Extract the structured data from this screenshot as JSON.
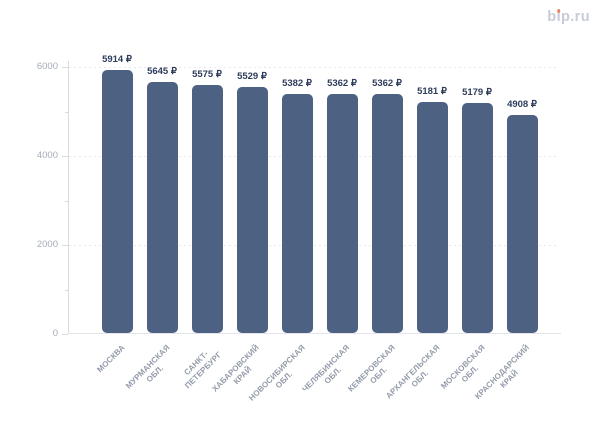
{
  "logo": {
    "text": "bip.ru",
    "color": "#c8ccd9",
    "dot_color": "#ef8266"
  },
  "chart_data": {
    "type": "bar",
    "title": "",
    "xlabel": "",
    "ylabel": "",
    "categories": [
      [
        "МОСКВА"
      ],
      [
        "МУРМАНСКАЯ",
        "ОБЛ."
      ],
      [
        "САНКТ-",
        "ПЕТЕРБУРГ"
      ],
      [
        "ХАБАРОВСКИЙ",
        "КРАЙ"
      ],
      [
        "НОВОСИБИРСКАЯ",
        "ОБЛ."
      ],
      [
        "ЧЕЛЯБИНСКАЯ",
        "ОБЛ."
      ],
      [
        "КЕМЕРОВСКАЯ",
        "ОБЛ."
      ],
      [
        "АРХАНГЕЛЬСКАЯ",
        "ОБЛ."
      ],
      [
        "МОСКОВСКАЯ",
        "ОБЛ."
      ],
      [
        "КРАСНОДАРСКИЙ",
        "КРАЙ"
      ]
    ],
    "values": [
      5914,
      5645,
      5575,
      5529,
      5382,
      5362,
      5362,
      5181,
      5179,
      4908
    ],
    "value_labels": [
      "5914 ₽",
      "5645 ₽",
      "5575 ₽",
      "5529 ₽",
      "5382 ₽",
      "5362 ₽",
      "5362 ₽",
      "5181 ₽",
      "5179 ₽",
      "4908 ₽"
    ],
    "ylim": [
      0,
      6000
    ],
    "yticks": [
      0,
      2000,
      4000,
      6000
    ],
    "ytick_labels": [
      "0",
      "2000",
      "4000",
      "6000"
    ],
    "minor_yticks": [
      1000,
      3000,
      5000
    ],
    "grid": "horizontal dashed at major yticks",
    "legend": "none",
    "colors": {
      "bar": "#4d6183",
      "value_label": "#2e3d5c",
      "ytick_label": "#a5abb8",
      "category_label": "#939ba9"
    }
  }
}
